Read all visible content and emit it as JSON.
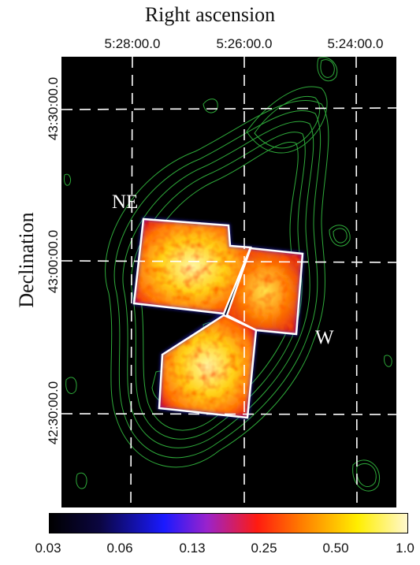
{
  "x_axis": {
    "title": "Right ascension",
    "ticks": [
      "5:28:00.0",
      "5:26:00.0",
      "5:24:00.0"
    ]
  },
  "y_axis": {
    "title": "Declination",
    "ticks": [
      "43:30:00.0",
      "43:00:00.0",
      "42:30:00.0"
    ]
  },
  "regions": {
    "ne": "NE",
    "w": "W"
  },
  "colorbar": {
    "ticks": [
      "0.03",
      "0.06",
      "0.13",
      "0.25",
      "0.50",
      "1.0"
    ],
    "colors": [
      "#000000",
      "#0b0640",
      "#1a1aff",
      "#9a22cc",
      "#ff1b10",
      "#ff7a00",
      "#ffee00",
      "#fff8d0"
    ]
  },
  "colors": {
    "background": "#000000",
    "contour": "#2eaa3a",
    "grid": "#ffffff",
    "outline": "#ffffff"
  }
}
